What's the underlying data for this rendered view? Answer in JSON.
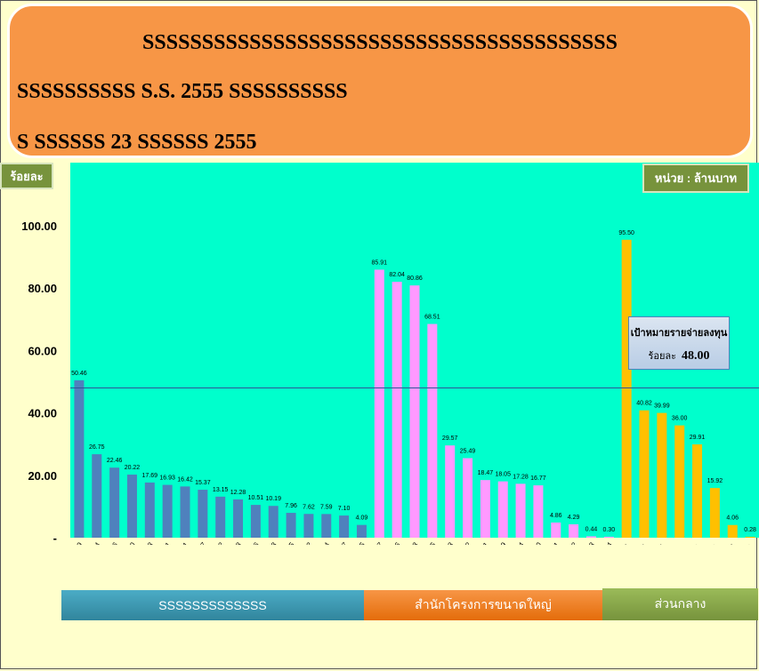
{
  "header": {
    "line1": "SSSSSSSSSSSSSSSSSSSSSSSSSSSSSSSSSSSSSSSS",
    "line2": "SSSSSSSSSS S.S. 2555 SSSSSSSSSS",
    "line3": "S SSSSSS  23 SSSSSS  2555"
  },
  "badges": {
    "ylabel": "ร้อยละ",
    "unit": "หน่วย : ล้านบาท"
  },
  "target_box": {
    "line1": "เป้าหมายรายจ่ายลงทุน",
    "label": "ร้อยละ",
    "value": "48.00"
  },
  "groups": [
    {
      "label": "SSSSSSSSSSSSS",
      "color": "#4bacc6"
    },
    {
      "label": "สำนักโครงการขนาดใหญ่",
      "color": "#f79646"
    },
    {
      "label": "ส่วนกลาง",
      "color": "#9bbb59"
    }
  ],
  "chart_data": {
    "type": "bar",
    "ylim": [
      0,
      100
    ],
    "yticks": [
      "-",
      "20.00",
      "40.00",
      "60.00",
      "80.00",
      "100.00"
    ],
    "target": 48.0,
    "grid": false,
    "colors": {
      "blue": "#4f81bd",
      "pink": "#ff99ff",
      "gold": "#ffc000",
      "plot_bg": "#00ffcc",
      "target_line": "#2f5597"
    },
    "categories": [
      "สชป.9",
      "สชป.4",
      "สชป.6",
      "สชป.10",
      "สชป.13",
      "สชป.11",
      "สชป.1",
      "สชป.7",
      "สชป.2",
      "สชป.8",
      "สชป.16",
      "สชป.3",
      "สชป.5",
      "สชป.12",
      "สชป.14",
      "สชป.17",
      "สชป.15",
      "สคบ.7",
      "สคบ.6",
      "สคบ.8",
      "สคบ.5",
      "สคบ.3",
      "สคบ.12",
      "สคบ.11",
      "สคบ. 9",
      "สคบ.14",
      "สคบ.10",
      "สคบ.1",
      "สคบ.2",
      "สคบ.13",
      "สคบ.4",
      "สพพ.",
      "กจบ.",
      "สอบ.",
      "สผค.",
      "สอก.",
      "สบก.",
      "สวส.",
      "สตก."
    ],
    "values": [
      50.46,
      26.75,
      22.46,
      20.22,
      17.69,
      16.93,
      16.42,
      15.37,
      13.15,
      12.28,
      10.51,
      10.19,
      7.96,
      7.62,
      7.59,
      7.1,
      4.09,
      85.91,
      82.04,
      80.86,
      68.51,
      29.57,
      25.49,
      18.47,
      18.05,
      17.28,
      16.77,
      4.86,
      4.29,
      0.44,
      0.3,
      95.5,
      40.82,
      39.99,
      36.0,
      29.91,
      15.92,
      4.06,
      0.28
    ],
    "labels": [
      "50.46",
      "26.75",
      "22.46",
      "20.22",
      "17.69",
      "16.93",
      "16.42",
      "15.37",
      "13.15",
      "12.28",
      "10.51",
      "10.19",
      "7.96",
      "7.62",
      "7.59",
      "7.10",
      "4.09",
      "85.91",
      "82.04",
      "80.86",
      "68.51",
      "29.57",
      "25.49",
      "18.47",
      "18.05",
      "17.28",
      "16.77",
      "4.86",
      "4.29",
      "0.44",
      "0.30",
      "95.50",
      "40.82",
      "39.99",
      "36.00",
      "29.91",
      "15.92",
      "4.06",
      "0.28"
    ],
    "group_of": [
      "blue",
      "blue",
      "blue",
      "blue",
      "blue",
      "blue",
      "blue",
      "blue",
      "blue",
      "blue",
      "blue",
      "blue",
      "blue",
      "blue",
      "blue",
      "blue",
      "blue",
      "pink",
      "pink",
      "pink",
      "pink",
      "pink",
      "pink",
      "pink",
      "pink",
      "pink",
      "pink",
      "pink",
      "pink",
      "pink",
      "pink",
      "gold",
      "gold",
      "gold",
      "gold",
      "gold",
      "gold",
      "gold",
      "gold"
    ]
  }
}
